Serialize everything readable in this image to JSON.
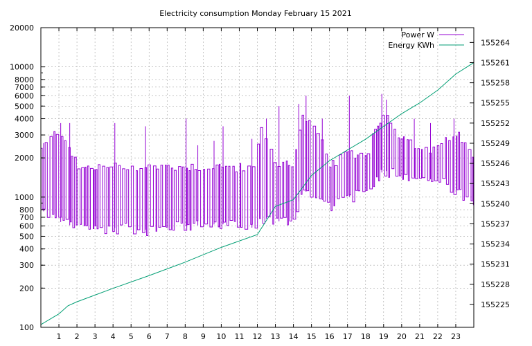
{
  "chart_data": {
    "type": "line",
    "title": "Electricity consumption Monday February 15 2021",
    "x": {
      "ticks": [
        1,
        2,
        3,
        4,
        5,
        6,
        7,
        8,
        9,
        10,
        11,
        12,
        13,
        14,
        15,
        16,
        17,
        18,
        19,
        20,
        21,
        22,
        23
      ],
      "range": [
        0,
        24
      ],
      "unit": "hour"
    },
    "y_left": {
      "scale": "log",
      "range": [
        100,
        20000
      ],
      "ticks": [
        100,
        200,
        300,
        400,
        500,
        600,
        700,
        800,
        1000,
        2000,
        3000,
        4000,
        5000,
        6000,
        7000,
        8000,
        10000,
        20000
      ]
    },
    "y_right": {
      "scale": "linear",
      "range": [
        155221.6,
        155266.2
      ],
      "ticks": [
        155225,
        155228,
        155231,
        155234,
        155237,
        155240,
        155243,
        155246,
        155249,
        155252,
        155255,
        155258,
        155261,
        155264
      ]
    },
    "grid": true,
    "legend_position": "top-right",
    "series": [
      {
        "name": "Power W",
        "axis": "left",
        "color": "#9400d3",
        "profile": [
          {
            "t": 0.0,
            "min": 800,
            "max": 2500
          },
          {
            "t": 1.0,
            "min": 650,
            "max": 3600
          },
          {
            "t": 2.0,
            "min": 580,
            "max": 1800
          },
          {
            "t": 4.0,
            "min": 580,
            "max": 1850
          },
          {
            "t": 6.0,
            "min": 560,
            "max": 1850
          },
          {
            "t": 8.0,
            "min": 600,
            "max": 1850
          },
          {
            "t": 10.0,
            "min": 620,
            "max": 1850
          },
          {
            "t": 11.8,
            "min": 580,
            "max": 1800
          },
          {
            "t": 12.2,
            "min": 700,
            "max": 3600
          },
          {
            "t": 13.0,
            "min": 650,
            "max": 1900
          },
          {
            "t": 14.0,
            "min": 660,
            "max": 2000
          },
          {
            "t": 14.5,
            "min": 1100,
            "max": 4500
          },
          {
            "t": 15.0,
            "min": 1100,
            "max": 3800
          },
          {
            "t": 16.0,
            "min": 850,
            "max": 1900
          },
          {
            "t": 17.0,
            "min": 1000,
            "max": 2300
          },
          {
            "t": 18.0,
            "min": 1050,
            "max": 2300
          },
          {
            "t": 19.0,
            "min": 1600,
            "max": 4800
          },
          {
            "t": 20.0,
            "min": 1500,
            "max": 3000
          },
          {
            "t": 21.0,
            "min": 1400,
            "max": 2500
          },
          {
            "t": 22.0,
            "min": 1350,
            "max": 2500
          },
          {
            "t": 23.0,
            "min": 1100,
            "max": 3400
          },
          {
            "t": 24.0,
            "min": 850,
            "max": 2000
          }
        ],
        "spikes": [
          {
            "t": 0.15,
            "v": 2600
          },
          {
            "t": 1.1,
            "v": 3700
          },
          {
            "t": 1.6,
            "v": 3700
          },
          {
            "t": 4.1,
            "v": 3700
          },
          {
            "t": 5.8,
            "v": 3500
          },
          {
            "t": 8.05,
            "v": 4000
          },
          {
            "t": 8.7,
            "v": 2500
          },
          {
            "t": 9.6,
            "v": 2700
          },
          {
            "t": 10.1,
            "v": 3500
          },
          {
            "t": 11.7,
            "v": 2800
          },
          {
            "t": 12.5,
            "v": 4000
          },
          {
            "t": 13.2,
            "v": 5000
          },
          {
            "t": 14.3,
            "v": 5200
          },
          {
            "t": 14.7,
            "v": 6000
          },
          {
            "t": 15.6,
            "v": 4000
          },
          {
            "t": 17.1,
            "v": 6000
          },
          {
            "t": 18.9,
            "v": 6200
          },
          {
            "t": 19.15,
            "v": 5600
          },
          {
            "t": 20.7,
            "v": 4000
          },
          {
            "t": 21.6,
            "v": 3700
          },
          {
            "t": 22.9,
            "v": 4000
          }
        ]
      },
      {
        "name": "Energy KWh",
        "axis": "right",
        "color": "#009e73",
        "points": [
          {
            "x": 0.0,
            "y": 155222.0
          },
          {
            "x": 1.0,
            "y": 155223.6
          },
          {
            "x": 1.5,
            "y": 155224.8
          },
          {
            "x": 2.0,
            "y": 155225.4
          },
          {
            "x": 4.0,
            "y": 155227.4
          },
          {
            "x": 6.0,
            "y": 155229.3
          },
          {
            "x": 8.0,
            "y": 155231.3
          },
          {
            "x": 10.0,
            "y": 155233.5
          },
          {
            "x": 12.0,
            "y": 155235.4
          },
          {
            "x": 13.0,
            "y": 155239.6
          },
          {
            "x": 14.0,
            "y": 155240.6
          },
          {
            "x": 15.0,
            "y": 155244.2
          },
          {
            "x": 16.0,
            "y": 155246.4
          },
          {
            "x": 18.0,
            "y": 155249.6
          },
          {
            "x": 19.0,
            "y": 155251.5
          },
          {
            "x": 20.0,
            "y": 155253.4
          },
          {
            "x": 21.0,
            "y": 155255.0
          },
          {
            "x": 22.0,
            "y": 155256.9
          },
          {
            "x": 23.0,
            "y": 155259.3
          },
          {
            "x": 24.0,
            "y": 155261.0
          }
        ]
      }
    ]
  }
}
